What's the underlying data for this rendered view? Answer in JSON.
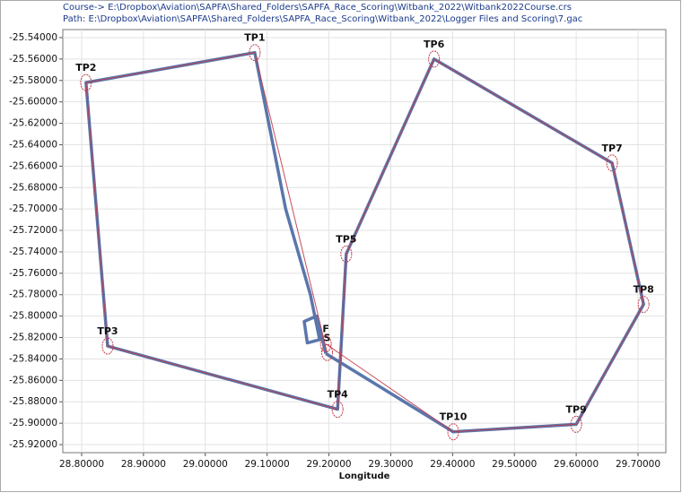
{
  "chart_data": {
    "type": "line",
    "title": "Course-> E:\\Dropbox\\Aviation\\SAPFA\\Shared_Folders\\SAPFA_Race_Scoring\\Witbank_2022\\Witbank2022Course.crs",
    "subtitle": "Path: E:\\Dropbox\\Aviation\\SAPFA\\Shared_Folders\\SAPFA_Race_Scoring\\Witbank_2022\\Logger Files and Scoring\\7.gac",
    "xlabel": "Longitude",
    "xlim": [
      28.7695,
      29.745
    ],
    "ylim": [
      -25.9275,
      -25.5325
    ],
    "xticks": [
      {
        "value": 28.8,
        "label": "28.80000"
      },
      {
        "value": 28.9,
        "label": "28.90000"
      },
      {
        "value": 29.0,
        "label": "29.00000"
      },
      {
        "value": 29.1,
        "label": "29.10000"
      },
      {
        "value": 29.2,
        "label": "29.20000"
      },
      {
        "value": 29.3,
        "label": "29.30000"
      },
      {
        "value": 29.4,
        "label": "29.40000"
      },
      {
        "value": 29.5,
        "label": "29.50000"
      },
      {
        "value": 29.6,
        "label": "29.60000"
      },
      {
        "value": 29.7,
        "label": "29.70000"
      }
    ],
    "yticks": [
      {
        "value": -25.54,
        "label": "-25.54000"
      },
      {
        "value": -25.56,
        "label": "-25.56000"
      },
      {
        "value": -25.58,
        "label": "-25.58000"
      },
      {
        "value": -25.6,
        "label": "-25.60000"
      },
      {
        "value": -25.62,
        "label": "-25.62000"
      },
      {
        "value": -25.64,
        "label": "-25.64000"
      },
      {
        "value": -25.66,
        "label": "-25.66000"
      },
      {
        "value": -25.68,
        "label": "-25.68000"
      },
      {
        "value": -25.7,
        "label": "-25.70000"
      },
      {
        "value": -25.72,
        "label": "-25.72000"
      },
      {
        "value": -25.74,
        "label": "-25.74000"
      },
      {
        "value": -25.76,
        "label": "-25.76000"
      },
      {
        "value": -25.78,
        "label": "-25.78000"
      },
      {
        "value": -25.8,
        "label": "-25.80000"
      },
      {
        "value": -25.82,
        "label": "-25.82000"
      },
      {
        "value": -25.84,
        "label": "-25.84000"
      },
      {
        "value": -25.86,
        "label": "-25.86000"
      },
      {
        "value": -25.88,
        "label": "-25.88000"
      },
      {
        "value": -25.9,
        "label": "-25.90000"
      },
      {
        "value": -25.92,
        "label": "-25.92000"
      }
    ],
    "grid": true,
    "series": [
      {
        "color": "#3d5f9e",
        "x": [
          29.195,
          29.18,
          29.16,
          29.165,
          29.185,
          29.17,
          29.13,
          29.08,
          28.807,
          28.842,
          29.214,
          29.228,
          29.37,
          29.658,
          29.709,
          29.6,
          29.401,
          29.195
        ],
        "values": [
          -25.835,
          -25.8,
          -25.805,
          -25.825,
          -25.822,
          -25.78,
          -25.7,
          -25.554,
          -25.582,
          -25.828,
          -25.887,
          -25.742,
          -25.56,
          -25.657,
          -25.789,
          -25.901,
          -25.908,
          -25.835
        ]
      },
      {
        "color": "#c03a4a",
        "x": [
          29.197,
          29.08,
          28.807,
          28.842,
          29.214,
          29.228,
          29.37,
          29.658,
          29.709,
          29.6,
          29.401,
          29.195
        ],
        "values": [
          -25.834,
          -25.554,
          -25.582,
          -25.828,
          -25.887,
          -25.742,
          -25.56,
          -25.657,
          -25.789,
          -25.901,
          -25.908,
          -25.826
        ],
        "point_labels": [
          "S",
          "TP1",
          "TP2",
          "TP3",
          "TP4",
          "TP5",
          "TP6",
          "TP7",
          "TP8",
          "TP9",
          "TP10",
          "F"
        ]
      }
    ]
  }
}
